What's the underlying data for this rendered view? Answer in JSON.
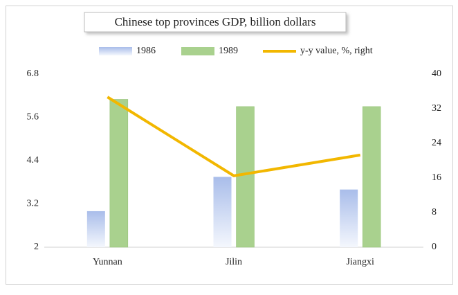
{
  "chart_data": {
    "type": "bar_line",
    "title": "Chinese top provinces GDP, billion dollars",
    "categories": [
      "Yunnan",
      "Jilin",
      "Jiangxi"
    ],
    "series": [
      {
        "name": "1986",
        "color": "#a9bdea",
        "values": [
          3.0,
          3.95,
          3.6
        ]
      },
      {
        "name": "1989",
        "color": "#a9d18e",
        "values": [
          6.1,
          5.9,
          5.9
        ]
      },
      {
        "name": "y-y value, %, right",
        "color": "#f2b700",
        "axis": "y2",
        "values": [
          34.7,
          16.5,
          21.3
        ]
      }
    ],
    "ylim": [
      2,
      6.8
    ],
    "yticks": [
      2,
      3.2,
      4.4,
      5.6,
      6.8
    ],
    "y2lim": [
      0,
      40
    ],
    "y2ticks": [
      0,
      8,
      16,
      24,
      32,
      40
    ],
    "grid": false,
    "legend": "top"
  }
}
